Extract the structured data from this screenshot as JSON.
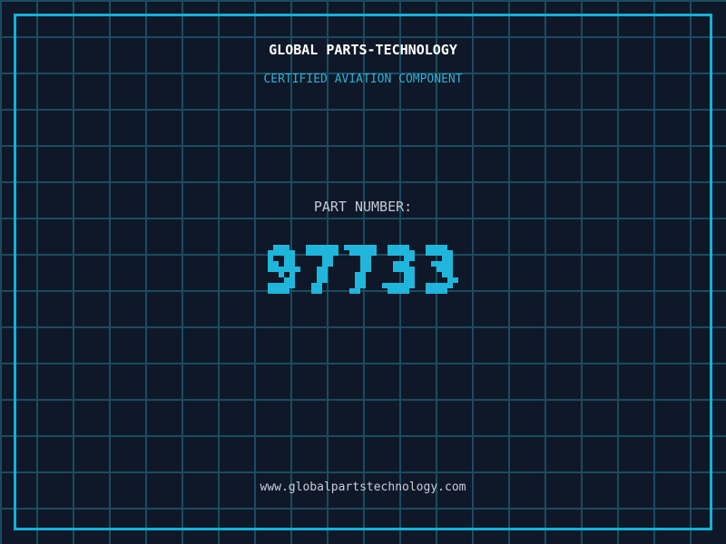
{
  "header": {
    "title": "GLOBAL PARTS-TECHNOLOGY",
    "subtitle": "CERTIFIED AVIATION COMPONENT"
  },
  "part": {
    "label": "PART NUMBER:",
    "number": "97733"
  },
  "footer": {
    "website": "www.globalpartstechnology.com"
  },
  "colors": {
    "background": "#0f1828",
    "grid_line": "#1a4c60",
    "frame_border": "#12b2d8",
    "title_text": "#ffffff",
    "subtitle_text": "#2fb0d4",
    "label_text": "#c4cad4",
    "part_number": "#20b6dc",
    "footer_text": "#c9cfd8"
  }
}
